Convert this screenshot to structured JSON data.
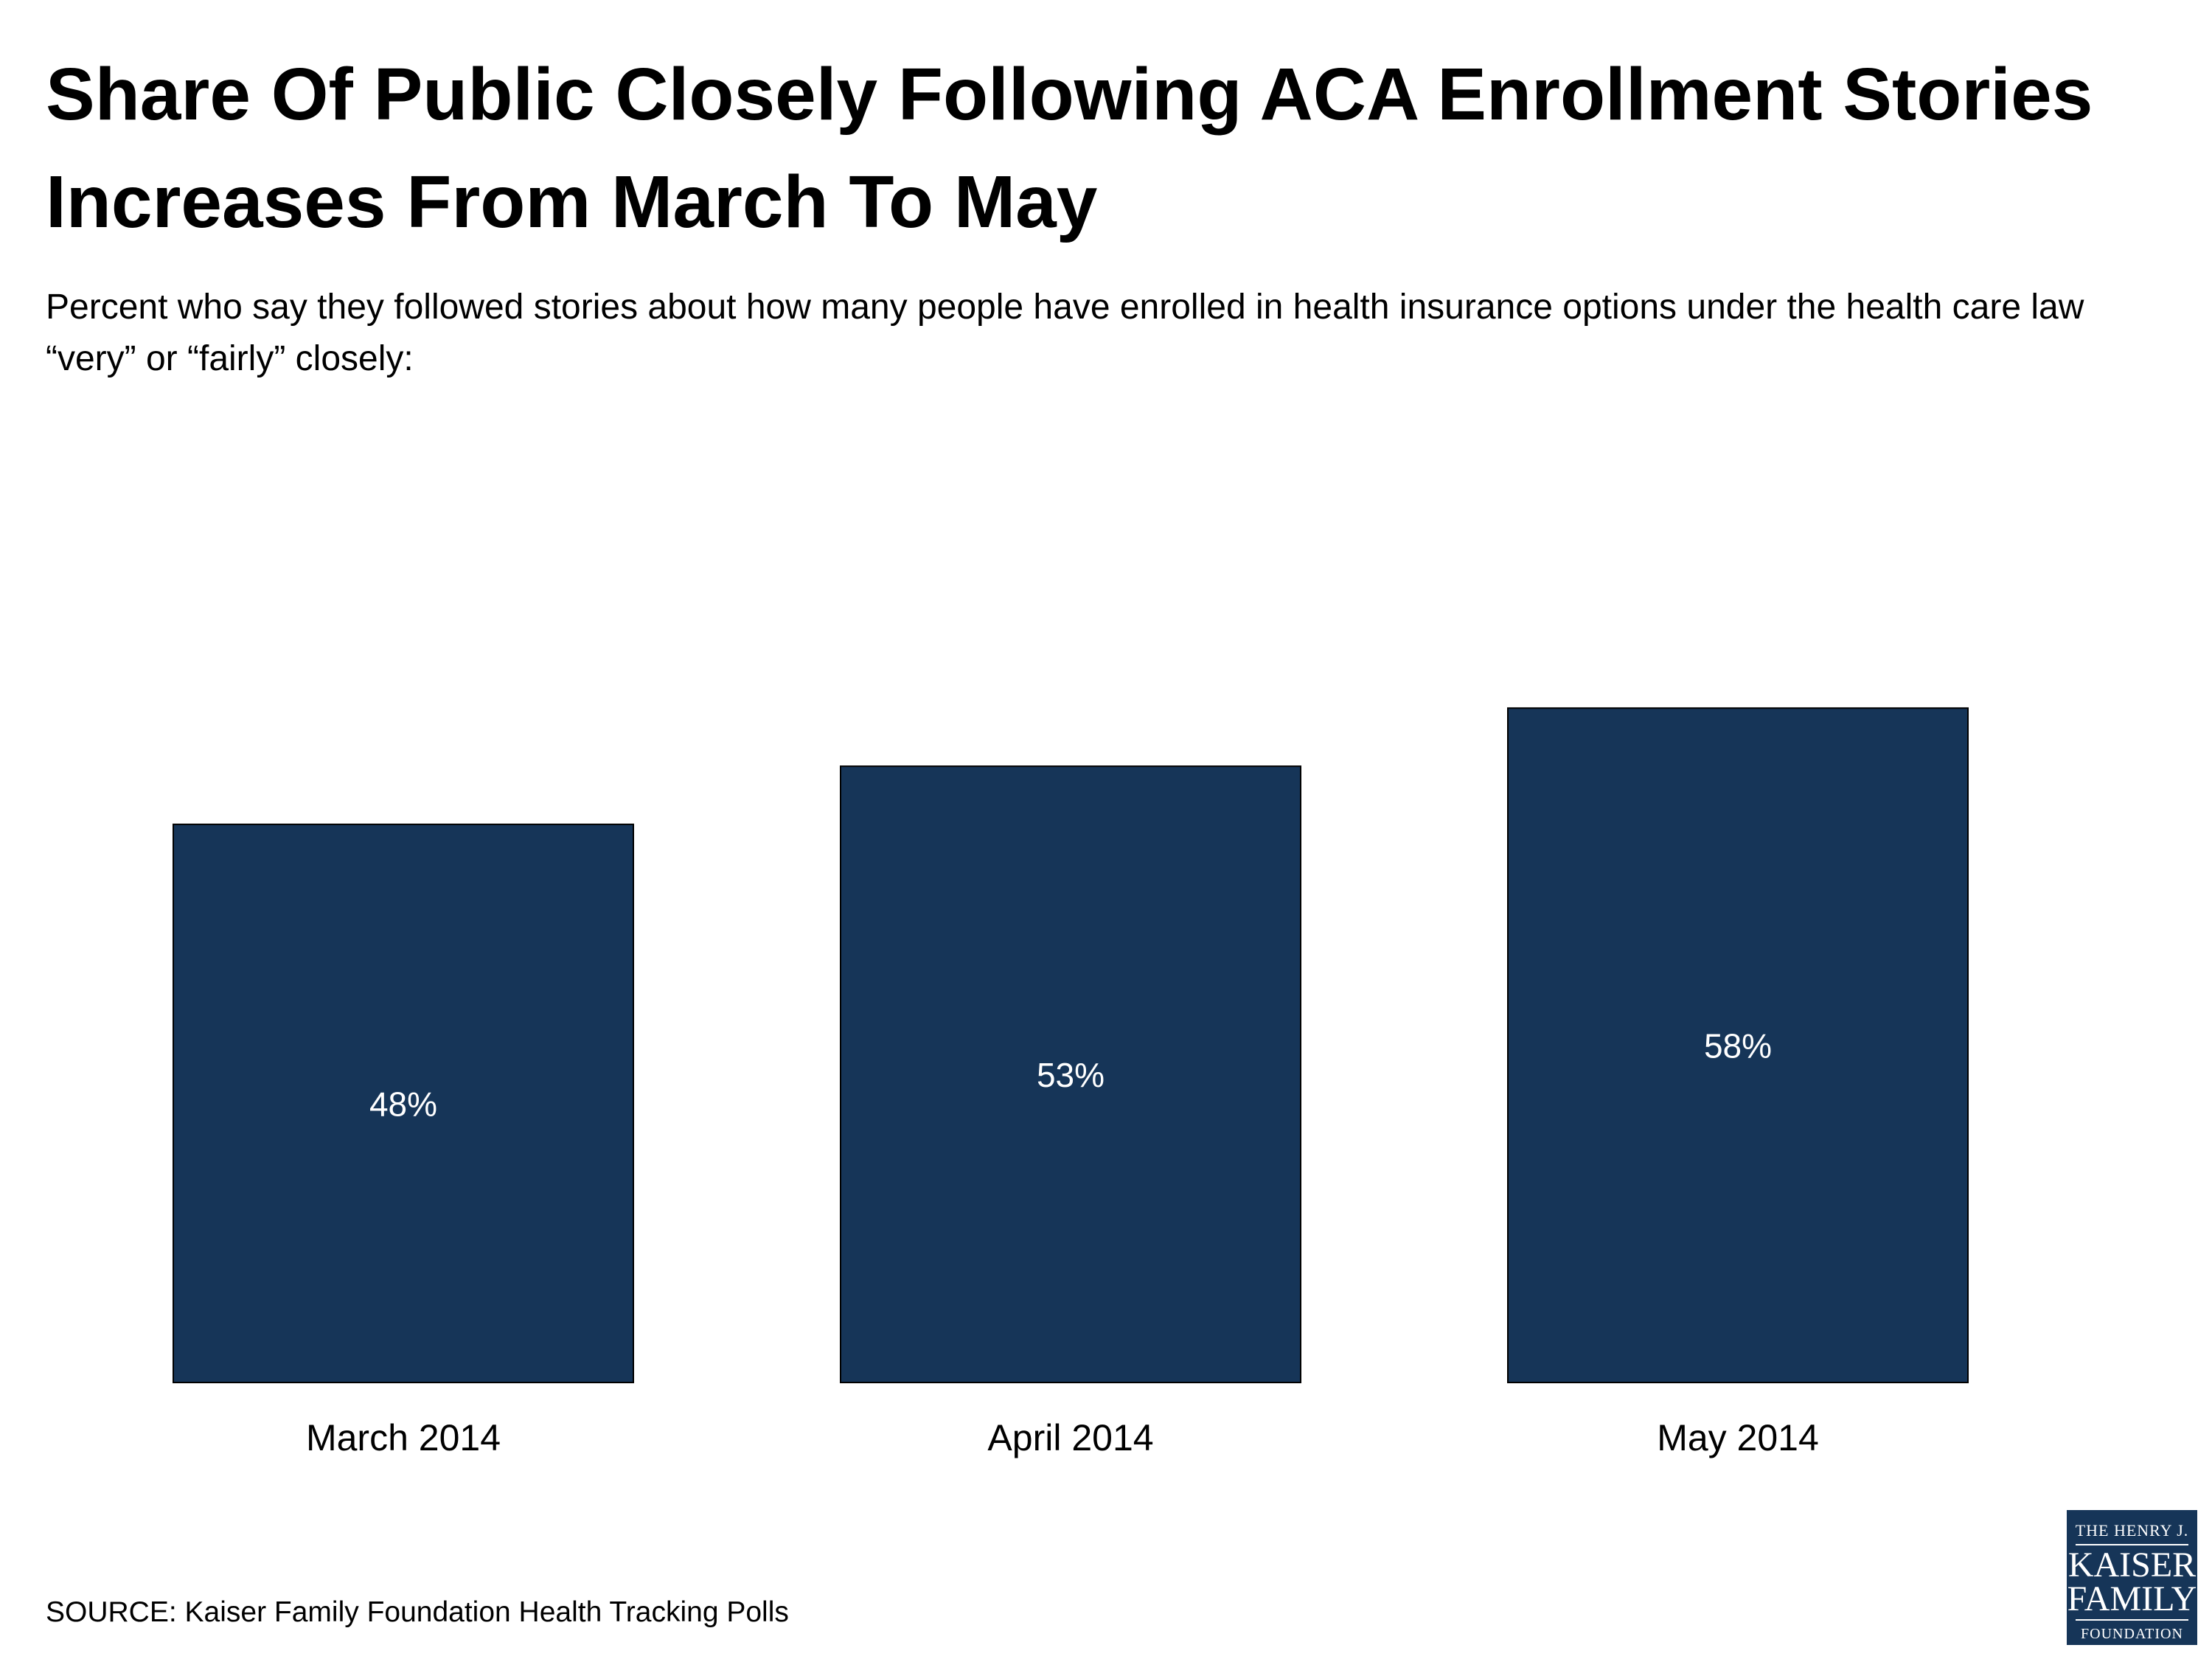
{
  "header": {
    "title": "Share Of Public Closely Following ACA Enrollment Stories Increases From March To May",
    "subtitle": "Percent who say they followed stories about how many people have enrolled in health insurance options under the health care law “very” or “fairly” closely:"
  },
  "chart_data": {
    "type": "bar",
    "categories": [
      "March 2014",
      "April 2014",
      "May 2014"
    ],
    "values": [
      48,
      53,
      58
    ],
    "data_labels": [
      "48%",
      "53%",
      "58%"
    ],
    "title": "Share Of Public Closely Following ACA Enrollment Stories Increases From March To May",
    "xlabel": "",
    "ylabel": "",
    "ylim": [
      0,
      100
    ],
    "grid": false,
    "legend": "none",
    "bar_color": "#163558",
    "label_color": "#ffffff"
  },
  "footer": {
    "source": "SOURCE: Kaiser Family Foundation Health Tracking Polls"
  },
  "logo": {
    "line1": "THE HENRY J.",
    "line2": "KAISER",
    "line3": "FAMILY",
    "line4": "FOUNDATION",
    "bg_color": "#163558"
  }
}
